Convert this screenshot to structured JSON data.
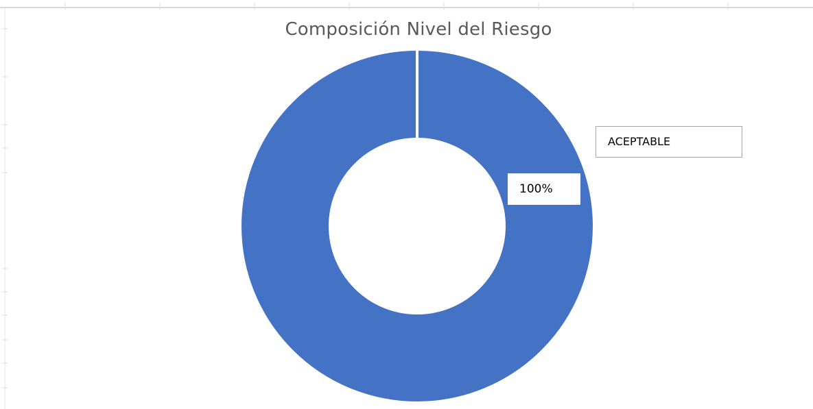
{
  "chart_data": {
    "type": "pie",
    "title": "Composición Nivel del Riesgo",
    "categories": [
      "ACEPTABLE"
    ],
    "values": [
      100
    ],
    "data_labels": [
      "100%"
    ],
    "hole": "donut",
    "colors": {
      "series": "#4472c4",
      "title": "#595959",
      "gridlines": "#d9d9d9"
    }
  }
}
